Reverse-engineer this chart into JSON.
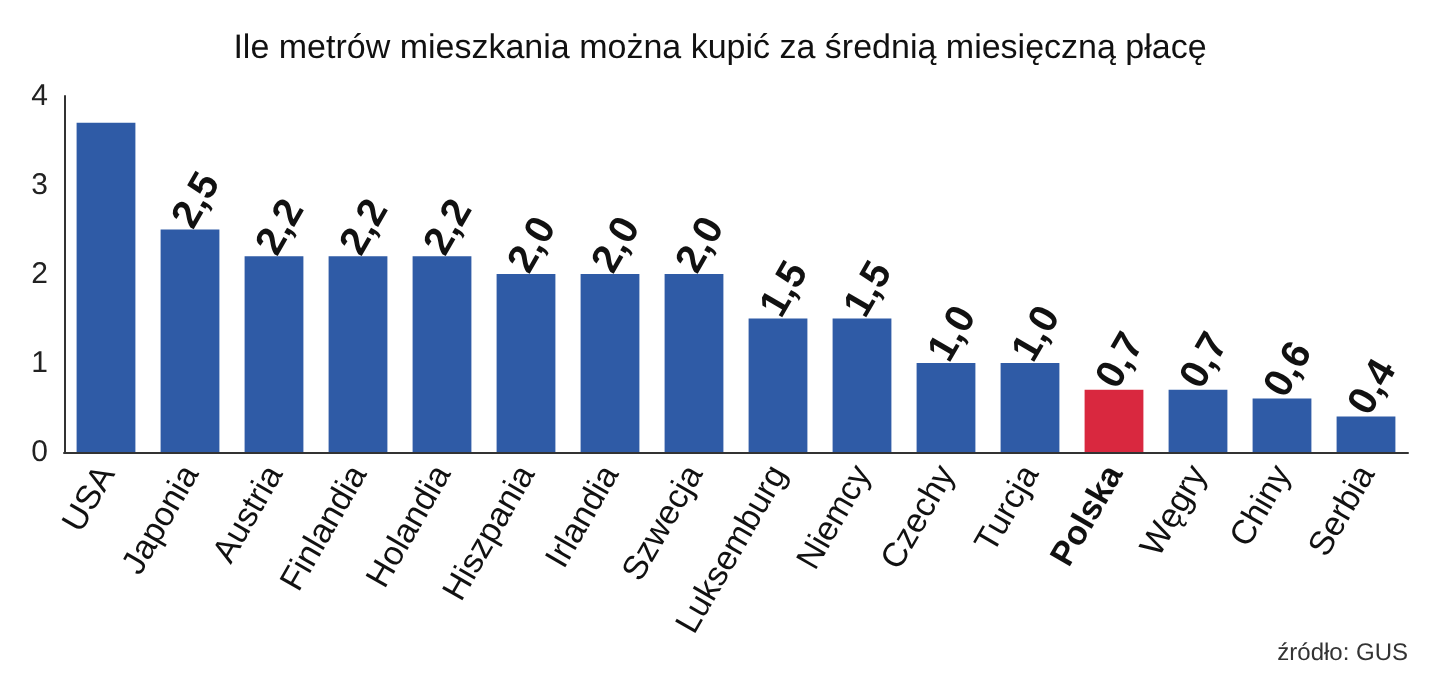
{
  "chart_data": {
    "type": "bar",
    "title": "Ile metrów mieszkania można kupić za średnią miesięczną płacę",
    "categories": [
      "USA",
      "Japonia",
      "Austria",
      "Finlandia",
      "Holandia",
      "Hiszpania",
      "Irlandia",
      "Szwecja",
      "Luksemburg",
      "Niemcy",
      "Czechy",
      "Turcja",
      "Polska",
      "Węgry",
      "Chiny",
      "Serbia"
    ],
    "values": [
      3.7,
      2.5,
      2.2,
      2.2,
      2.2,
      2.0,
      2.0,
      2.0,
      1.5,
      1.5,
      1.0,
      1.0,
      0.7,
      0.7,
      0.6,
      0.4
    ],
    "value_labels": [
      null,
      "2,5",
      "2,2",
      "2,2",
      "2,2",
      "2,0",
      "2,0",
      "2,0",
      "1,5",
      "1,5",
      "1,0",
      "1,0",
      "0,7",
      "0,7",
      "0,6",
      "0,4"
    ],
    "colors": [
      "#2f5ba6",
      "#2f5ba6",
      "#2f5ba6",
      "#2f5ba6",
      "#2f5ba6",
      "#2f5ba6",
      "#2f5ba6",
      "#2f5ba6",
      "#2f5ba6",
      "#2f5ba6",
      "#2f5ba6",
      "#2f5ba6",
      "#d9283f",
      "#2f5ba6",
      "#2f5ba6",
      "#2f5ba6"
    ],
    "ylim": [
      0,
      4
    ],
    "yticks": [
      0,
      1,
      2,
      3,
      4
    ],
    "grid": false,
    "annotations": [
      "źródło: GUS"
    ]
  }
}
